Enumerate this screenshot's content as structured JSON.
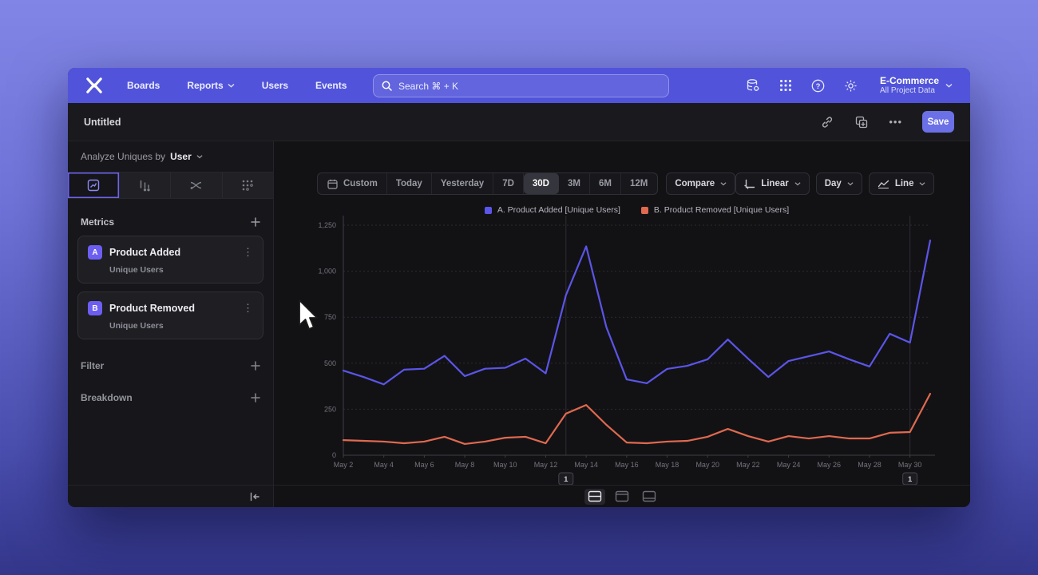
{
  "nav": {
    "items": [
      "Boards",
      "Reports",
      "Users",
      "Events"
    ],
    "search_placeholder": "Search  ⌘ + K",
    "project_name": "E-Commerce",
    "project_scope": "All Project Data"
  },
  "titlebar": {
    "title": "Untitled",
    "more_label": "•••",
    "save_label": "Save"
  },
  "sidebar": {
    "analyze_prefix": "Analyze Uniques by",
    "analyze_value": "User",
    "metrics_header": "Metrics",
    "metrics": [
      {
        "badge": "A",
        "name": "Product Added",
        "subtitle": "Unique Users"
      },
      {
        "badge": "B",
        "name": "Product Removed",
        "subtitle": "Unique Users"
      }
    ],
    "filter_label": "Filter",
    "breakdown_label": "Breakdown",
    "kebab_glyph": "⋮"
  },
  "toolbar": {
    "ranges": [
      "Custom",
      "Today",
      "Yesterday",
      "7D",
      "30D",
      "3M",
      "6M",
      "12M"
    ],
    "selected_range": "30D",
    "compare_label": "Compare",
    "scale_label": "Linear",
    "interval_label": "Day",
    "chart_type_label": "Line"
  },
  "chart_data": {
    "type": "line",
    "title": "",
    "xlabel": "",
    "ylabel": "",
    "ylim": [
      0,
      1250
    ],
    "yticks": [
      0,
      250,
      500,
      750,
      1000,
      1250
    ],
    "ytick_labels": [
      "0",
      "250",
      "500",
      "750",
      "1,000",
      "1,250"
    ],
    "grid": "horizontal-dotted",
    "legend_position": "top-center",
    "x": [
      "May 2",
      "May 3",
      "May 4",
      "May 5",
      "May 6",
      "May 7",
      "May 8",
      "May 9",
      "May 10",
      "May 11",
      "May 12",
      "May 13",
      "May 14",
      "May 15",
      "May 16",
      "May 17",
      "May 18",
      "May 19",
      "May 20",
      "May 21",
      "May 22",
      "May 23",
      "May 24",
      "May 25",
      "May 26",
      "May 27",
      "May 28",
      "May 29",
      "May 30",
      "May 31"
    ],
    "series": [
      {
        "name": "A. Product Added [Unique Users]",
        "color": "#5b55e8",
        "values": [
          460,
          425,
          385,
          465,
          470,
          540,
          430,
          470,
          475,
          525,
          445,
          870,
          1135,
          695,
          412,
          391,
          469,
          486,
          521,
          629,
          525,
          425,
          512,
          538,
          564,
          521,
          482,
          660,
          612,
          1167
        ]
      },
      {
        "name": "B. Product Removed [Unique Users]",
        "color": "#e0694f",
        "values": [
          82,
          78,
          74,
          65,
          74,
          100,
          61,
          74,
          95,
          100,
          65,
          226,
          273,
          165,
          69,
          65,
          74,
          78,
          100,
          143,
          104,
          74,
          104,
          91,
          104,
          91,
          91,
          122,
          126,
          334
        ]
      }
    ],
    "annotations": [
      {
        "label": "1",
        "day_index": 11
      },
      {
        "label": "1",
        "day_index": 28
      }
    ]
  }
}
